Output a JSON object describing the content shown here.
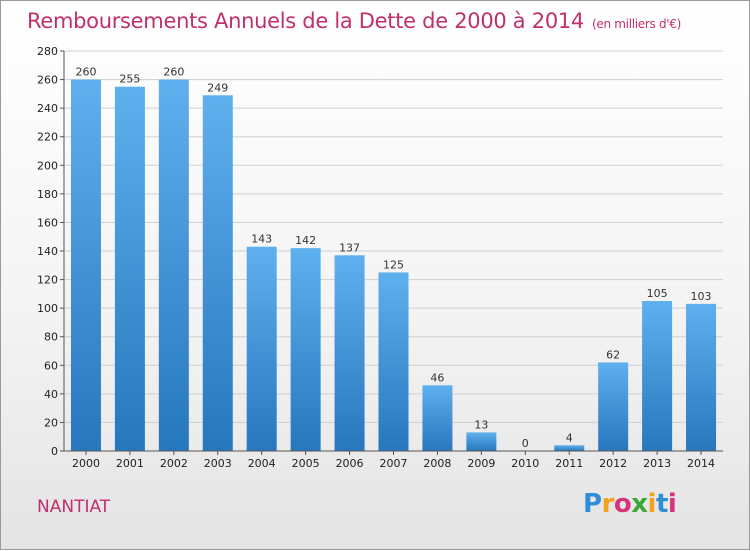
{
  "header": {
    "title": "Remboursements Annuels de la Dette de 2000 à 2014",
    "unit": "(en milliers d'€)"
  },
  "footer": {
    "commune": "NANTIAT",
    "logo_text": "Proxiti"
  },
  "colors": {
    "title": "#c0306d",
    "bar_top": "#5fb0ee",
    "bar_bottom": "#2677bd",
    "grid": "#cfcfcf"
  },
  "chart_data": {
    "type": "bar",
    "title": "Remboursements Annuels de la Dette de 2000 à 2014",
    "xlabel": "",
    "ylabel": "",
    "categories": [
      "2000",
      "2001",
      "2002",
      "2003",
      "2004",
      "2005",
      "2006",
      "2007",
      "2008",
      "2009",
      "2010",
      "2011",
      "2012",
      "2013",
      "2014"
    ],
    "values": [
      260,
      255,
      260,
      249,
      143,
      142,
      137,
      125,
      46,
      13,
      0,
      4,
      62,
      105,
      103
    ],
    "ylim": [
      0,
      280
    ],
    "yticks": [
      0,
      20,
      40,
      60,
      80,
      100,
      120,
      140,
      160,
      180,
      200,
      220,
      240,
      260,
      280
    ],
    "grid": true,
    "legend": "none"
  }
}
